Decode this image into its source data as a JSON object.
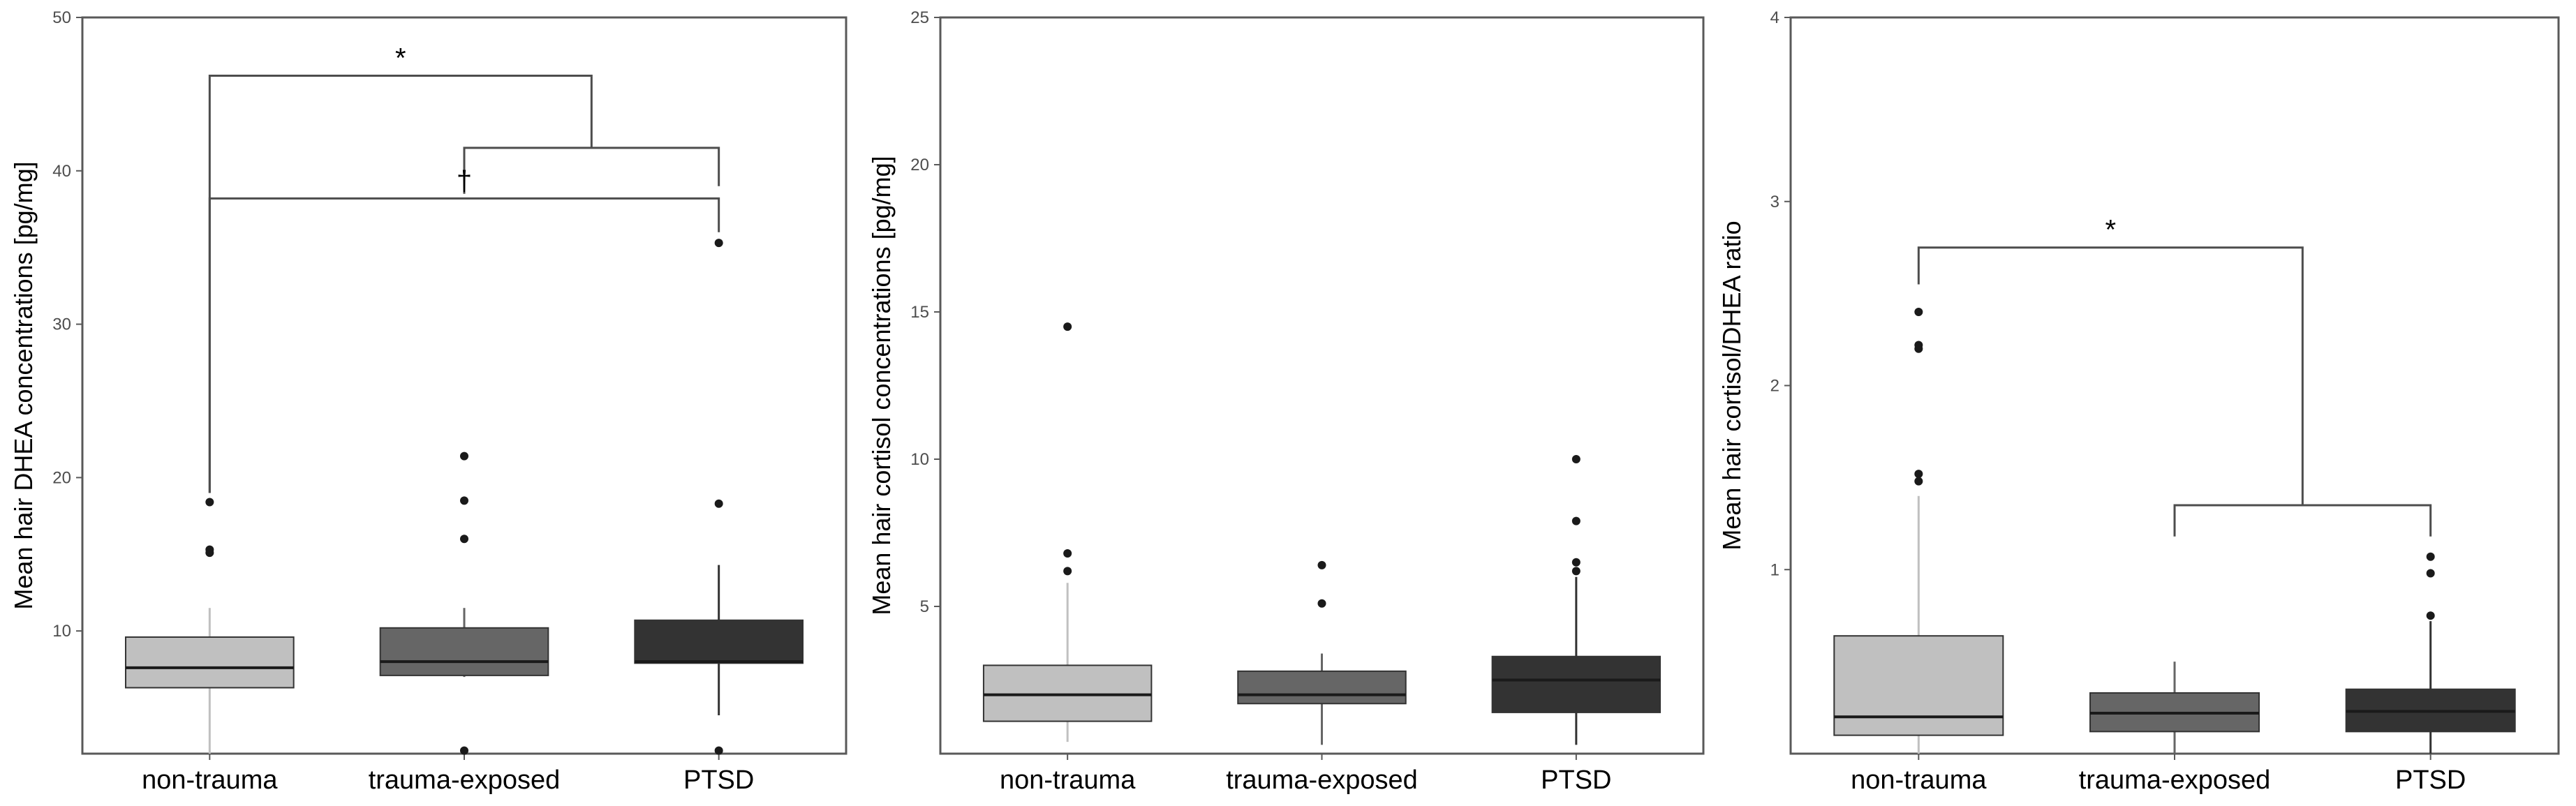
{
  "colors": {
    "non_trauma": "#c0c0c0",
    "trauma_exposed": "#666666",
    "ptsd": "#333333",
    "axis": "#595959",
    "bracket": "#4d4d4d",
    "text": "#000000"
  },
  "chart_data": [
    {
      "type": "box",
      "ylabel": "Mean hair DHEA concentrations [pg/mg]",
      "ylim": [
        2,
        50
      ],
      "yticks": [
        10,
        20,
        30,
        40,
        50
      ],
      "grid": false,
      "categories": [
        "non-trauma",
        "trauma-exposed",
        "PTSD"
      ],
      "boxes": [
        {
          "category": "non-trauma",
          "q1": 6.3,
          "median": 7.6,
          "q3": 9.6,
          "whisker_low": 2.0,
          "whisker_high": 11.5,
          "outliers": [
            15.1,
            15.3,
            18.4
          ]
        },
        {
          "category": "trauma-exposed",
          "q1": 7.1,
          "median": 8.0,
          "q3": 10.2,
          "whisker_low": 7.0,
          "whisker_high": 11.5,
          "outliers": [
            2.2,
            16.0,
            18.5,
            21.4
          ]
        },
        {
          "category": "PTSD",
          "q1": 7.9,
          "median": 8.0,
          "q3": 10.7,
          "whisker_low": 4.5,
          "whisker_high": 14.3,
          "outliers": [
            2.2,
            18.3,
            35.3
          ]
        }
      ],
      "annotations": [
        {
          "type": "bracket",
          "from": 1,
          "to": 2,
          "y": 41.5,
          "drop_left": 38.5,
          "drop_right": 39.0,
          "label": ""
        },
        {
          "type": "bracket",
          "from": 0,
          "to": 1.5,
          "y": 46.2,
          "drop_left": 19.0,
          "drop_right": 41.5,
          "label": "*"
        },
        {
          "type": "bracket",
          "from": 0,
          "to": 2,
          "y": 38.2,
          "drop_left": 19.0,
          "drop_right": 36.0,
          "label": "†"
        }
      ]
    },
    {
      "type": "box",
      "ylabel": "Mean hair cortisol concentrations [pg/mg]",
      "ylim": [
        0,
        25
      ],
      "yticks": [
        5,
        10,
        15,
        20,
        25
      ],
      "grid": false,
      "categories": [
        "non-trauma",
        "trauma-exposed",
        "PTSD"
      ],
      "boxes": [
        {
          "category": "non-trauma",
          "q1": 1.1,
          "median": 2.0,
          "q3": 3.0,
          "whisker_low": 0.4,
          "whisker_high": 5.8,
          "outliers": [
            6.2,
            6.8,
            14.5
          ]
        },
        {
          "category": "trauma-exposed",
          "q1": 1.7,
          "median": 2.0,
          "q3": 2.8,
          "whisker_low": 0.3,
          "whisker_high": 3.4,
          "outliers": [
            5.1,
            6.4
          ]
        },
        {
          "category": "PTSD",
          "q1": 1.4,
          "median": 2.5,
          "q3": 3.3,
          "whisker_low": 0.3,
          "whisker_high": 6.0,
          "outliers": [
            6.2,
            6.5,
            7.9,
            10.0
          ]
        }
      ],
      "annotations": []
    },
    {
      "type": "box",
      "ylabel": "Mean hair cortisol/DHEA ratio",
      "ylim": [
        0,
        4
      ],
      "yticks": [
        1,
        2,
        3,
        4
      ],
      "grid": false,
      "categories": [
        "non-trauma",
        "trauma-exposed",
        "PTSD"
      ],
      "boxes": [
        {
          "category": "non-trauma",
          "q1": 0.1,
          "median": 0.2,
          "q3": 0.64,
          "whisker_low": 0.0,
          "whisker_high": 1.4,
          "outliers": [
            1.48,
            1.52,
            2.2,
            2.22,
            2.4
          ]
        },
        {
          "category": "trauma-exposed",
          "q1": 0.12,
          "median": 0.22,
          "q3": 0.33,
          "whisker_low": 0.0,
          "whisker_high": 0.5,
          "outliers": []
        },
        {
          "category": "PTSD",
          "q1": 0.12,
          "median": 0.23,
          "q3": 0.35,
          "whisker_low": 0.0,
          "whisker_high": 0.72,
          "outliers": [
            0.75,
            0.98,
            1.07
          ]
        }
      ],
      "annotations": [
        {
          "type": "bracket",
          "from": 1,
          "to": 2,
          "y": 1.35,
          "drop_left": 1.18,
          "drop_right": 1.18,
          "label": ""
        },
        {
          "type": "bracket",
          "from": 0,
          "to": 1.5,
          "y": 2.75,
          "drop_left": 2.55,
          "drop_right": 1.35,
          "label": "*"
        }
      ]
    }
  ]
}
